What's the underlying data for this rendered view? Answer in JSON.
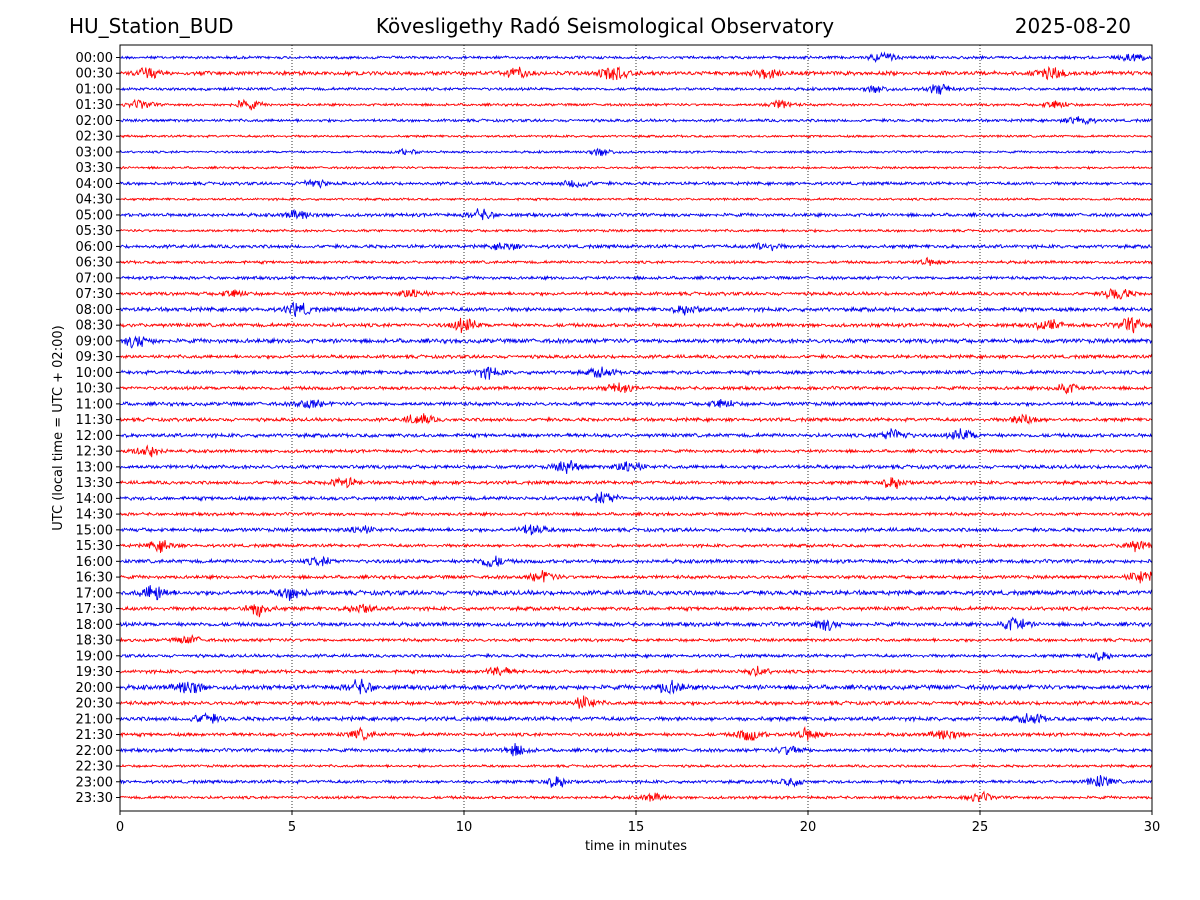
{
  "header": {
    "station": "HU_Station_BUD",
    "title": "Kövesligethy Radó Seismological Observatory",
    "date": "2025-08-20"
  },
  "chart_data": {
    "type": "line",
    "title": "Kövesligethy Radó Seismological Observatory",
    "xlabel": "time in minutes",
    "ylabel": "UTC (local time = UTC + 02:00)",
    "xlim": [
      0,
      30
    ],
    "xticks": [
      0,
      5,
      10,
      15,
      20,
      25,
      30
    ],
    "grid": "vertical dotted at x ticks",
    "colors": {
      "even_rows": "#0000ee",
      "odd_rows": "#ff0000"
    },
    "rows": [
      "00:00",
      "00:30",
      "01:00",
      "01:30",
      "02:00",
      "02:30",
      "03:00",
      "03:30",
      "04:00",
      "04:30",
      "05:00",
      "05:30",
      "06:00",
      "06:30",
      "07:00",
      "07:30",
      "08:00",
      "08:30",
      "09:00",
      "09:30",
      "10:00",
      "10:30",
      "11:00",
      "11:30",
      "12:00",
      "12:30",
      "13:00",
      "13:30",
      "14:00",
      "14:30",
      "15:00",
      "15:30",
      "16:00",
      "16:30",
      "17:00",
      "17:30",
      "18:00",
      "18:30",
      "19:00",
      "19:30",
      "20:00",
      "20:30",
      "21:00",
      "21:30",
      "22:00",
      "22:30",
      "23:00",
      "23:30"
    ],
    "row_amplitude": [
      1.0,
      1.4,
      1.0,
      0.9,
      1.0,
      0.8,
      0.8,
      0.8,
      1.1,
      0.8,
      1.2,
      0.9,
      1.2,
      1.0,
      1.1,
      1.2,
      1.4,
      1.3,
      1.5,
      1.2,
      1.3,
      1.2,
      1.3,
      1.2,
      1.3,
      1.1,
      1.3,
      1.2,
      1.3,
      1.1,
      1.3,
      1.1,
      1.3,
      1.2,
      1.6,
      1.3,
      1.4,
      1.1,
      1.1,
      1.2,
      1.6,
      1.3,
      1.4,
      1.2,
      1.2,
      0.9,
      1.1,
      1.0
    ],
    "events": [
      {
        "row": "00:00",
        "x": 22.2,
        "amp": 2.5
      },
      {
        "row": "00:00",
        "x": 29.5,
        "amp": 2.2
      },
      {
        "row": "00:30",
        "x": 0.8,
        "amp": 2.0
      },
      {
        "row": "00:30",
        "x": 11.5,
        "amp": 1.8
      },
      {
        "row": "00:30",
        "x": 14.3,
        "amp": 3.2
      },
      {
        "row": "00:30",
        "x": 18.8,
        "amp": 2.0
      },
      {
        "row": "00:30",
        "x": 27.1,
        "amp": 3.0
      },
      {
        "row": "01:00",
        "x": 23.8,
        "amp": 2.5
      },
      {
        "row": "01:00",
        "x": 22.0,
        "amp": 1.8
      },
      {
        "row": "01:30",
        "x": 0.6,
        "amp": 2.2
      },
      {
        "row": "01:30",
        "x": 3.7,
        "amp": 2.8
      },
      {
        "row": "01:30",
        "x": 19.2,
        "amp": 2.4
      },
      {
        "row": "01:30",
        "x": 27.2,
        "amp": 2.4
      },
      {
        "row": "02:00",
        "x": 27.9,
        "amp": 2.5
      },
      {
        "row": "03:00",
        "x": 14.0,
        "amp": 2.5
      },
      {
        "row": "03:00",
        "x": 8.3,
        "amp": 1.6
      },
      {
        "row": "04:00",
        "x": 13.3,
        "amp": 2.0
      },
      {
        "row": "04:00",
        "x": 5.6,
        "amp": 1.8
      },
      {
        "row": "05:00",
        "x": 10.5,
        "amp": 2.2
      },
      {
        "row": "05:00",
        "x": 5.2,
        "amp": 1.8
      },
      {
        "row": "06:00",
        "x": 18.8,
        "amp": 1.8
      },
      {
        "row": "06:00",
        "x": 11.2,
        "amp": 1.6
      },
      {
        "row": "06:30",
        "x": 23.5,
        "amp": 1.6
      },
      {
        "row": "07:30",
        "x": 8.5,
        "amp": 2.0
      },
      {
        "row": "07:30",
        "x": 3.3,
        "amp": 1.6
      },
      {
        "row": "07:30",
        "x": 29.0,
        "amp": 2.8
      },
      {
        "row": "08:00",
        "x": 5.2,
        "amp": 2.4
      },
      {
        "row": "08:00",
        "x": 16.5,
        "amp": 1.8
      },
      {
        "row": "08:30",
        "x": 10.0,
        "amp": 2.6
      },
      {
        "row": "08:30",
        "x": 29.4,
        "amp": 2.8
      },
      {
        "row": "08:30",
        "x": 27.0,
        "amp": 2.0
      },
      {
        "row": "09:00",
        "x": 0.5,
        "amp": 2.2
      },
      {
        "row": "10:00",
        "x": 10.7,
        "amp": 2.0
      },
      {
        "row": "10:00",
        "x": 14.0,
        "amp": 1.8
      },
      {
        "row": "10:30",
        "x": 14.5,
        "amp": 2.0
      },
      {
        "row": "10:30",
        "x": 27.5,
        "amp": 2.2
      },
      {
        "row": "11:00",
        "x": 5.5,
        "amp": 1.8
      },
      {
        "row": "11:00",
        "x": 17.5,
        "amp": 1.8
      },
      {
        "row": "11:30",
        "x": 8.7,
        "amp": 2.6
      },
      {
        "row": "11:30",
        "x": 26.3,
        "amp": 2.4
      },
      {
        "row": "12:00",
        "x": 22.5,
        "amp": 2.6
      },
      {
        "row": "12:00",
        "x": 24.5,
        "amp": 2.2
      },
      {
        "row": "12:30",
        "x": 0.8,
        "amp": 3.0
      },
      {
        "row": "13:00",
        "x": 13.0,
        "amp": 2.4
      },
      {
        "row": "13:00",
        "x": 14.8,
        "amp": 2.6
      },
      {
        "row": "13:30",
        "x": 6.5,
        "amp": 2.2
      },
      {
        "row": "13:30",
        "x": 22.5,
        "amp": 2.4
      },
      {
        "row": "14:00",
        "x": 14.1,
        "amp": 2.4
      },
      {
        "row": "15:00",
        "x": 12.0,
        "amp": 2.2
      },
      {
        "row": "15:00",
        "x": 7.0,
        "amp": 1.6
      },
      {
        "row": "15:30",
        "x": 1.2,
        "amp": 2.6
      },
      {
        "row": "15:30",
        "x": 29.5,
        "amp": 2.4
      },
      {
        "row": "16:00",
        "x": 10.8,
        "amp": 2.4
      },
      {
        "row": "16:00",
        "x": 5.8,
        "amp": 1.6
      },
      {
        "row": "16:30",
        "x": 12.3,
        "amp": 2.2
      },
      {
        "row": "16:30",
        "x": 29.7,
        "amp": 3.0
      },
      {
        "row": "17:00",
        "x": 1.0,
        "amp": 2.6
      },
      {
        "row": "17:00",
        "x": 5.0,
        "amp": 2.0
      },
      {
        "row": "17:30",
        "x": 4.0,
        "amp": 2.6
      },
      {
        "row": "17:30",
        "x": 7.0,
        "amp": 2.0
      },
      {
        "row": "18:00",
        "x": 26.0,
        "amp": 2.4
      },
      {
        "row": "18:00",
        "x": 20.5,
        "amp": 2.0
      },
      {
        "row": "18:30",
        "x": 2.0,
        "amp": 1.8
      },
      {
        "row": "19:00",
        "x": 28.5,
        "amp": 1.8
      },
      {
        "row": "19:30",
        "x": 11.0,
        "amp": 2.0
      },
      {
        "row": "19:30",
        "x": 18.5,
        "amp": 1.8
      },
      {
        "row": "20:00",
        "x": 2.0,
        "amp": 2.4
      },
      {
        "row": "20:00",
        "x": 7.0,
        "amp": 2.2
      },
      {
        "row": "20:00",
        "x": 16.0,
        "amp": 2.0
      },
      {
        "row": "20:30",
        "x": 13.5,
        "amp": 2.6
      },
      {
        "row": "21:00",
        "x": 2.5,
        "amp": 1.8
      },
      {
        "row": "21:00",
        "x": 26.5,
        "amp": 1.8
      },
      {
        "row": "21:30",
        "x": 18.3,
        "amp": 2.8
      },
      {
        "row": "21:30",
        "x": 20.0,
        "amp": 2.4
      },
      {
        "row": "21:30",
        "x": 24.0,
        "amp": 2.4
      },
      {
        "row": "21:30",
        "x": 7.0,
        "amp": 2.0
      },
      {
        "row": "22:00",
        "x": 11.5,
        "amp": 2.4
      },
      {
        "row": "22:00",
        "x": 19.5,
        "amp": 2.0
      },
      {
        "row": "23:00",
        "x": 12.7,
        "amp": 2.6
      },
      {
        "row": "23:00",
        "x": 28.5,
        "amp": 2.8
      },
      {
        "row": "23:00",
        "x": 19.5,
        "amp": 1.6
      },
      {
        "row": "23:30",
        "x": 15.5,
        "amp": 1.8
      },
      {
        "row": "23:30",
        "x": 25.0,
        "amp": 2.2
      }
    ]
  }
}
